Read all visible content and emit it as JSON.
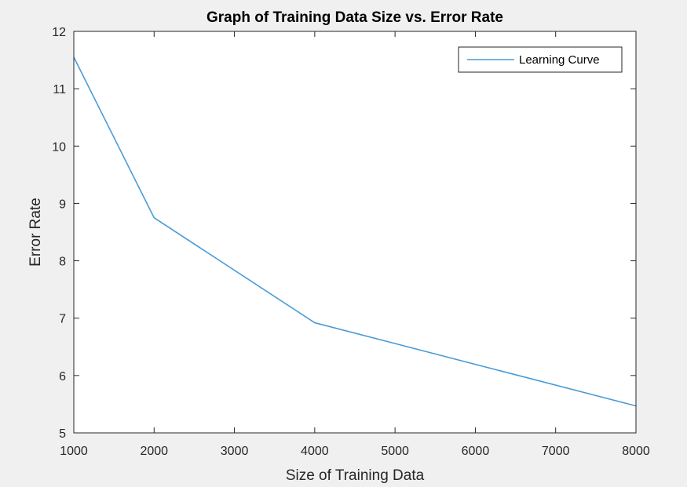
{
  "chart_data": {
    "type": "line",
    "title": "Graph of Training Data Size vs. Error Rate",
    "xlabel": "Size of Training Data",
    "ylabel": "Error Rate",
    "xlim": [
      1000,
      8000
    ],
    "ylim": [
      5,
      12
    ],
    "xticks": [
      "1000",
      "2000",
      "3000",
      "4000",
      "5000",
      "6000",
      "7000",
      "8000"
    ],
    "yticks": [
      "5",
      "6",
      "7",
      "8",
      "9",
      "10",
      "11",
      "12"
    ],
    "grid": false,
    "legend_position": "top-right",
    "series": [
      {
        "name": "Learning Curve",
        "color": "#4a9bd6",
        "x": [
          1000,
          2000,
          4000,
          8000
        ],
        "y": [
          11.55,
          8.75,
          6.92,
          5.47
        ]
      }
    ]
  },
  "colors": {
    "figure_background": "#f0f0f0",
    "axes_background": "#ffffff",
    "axis_color": "#262626"
  }
}
